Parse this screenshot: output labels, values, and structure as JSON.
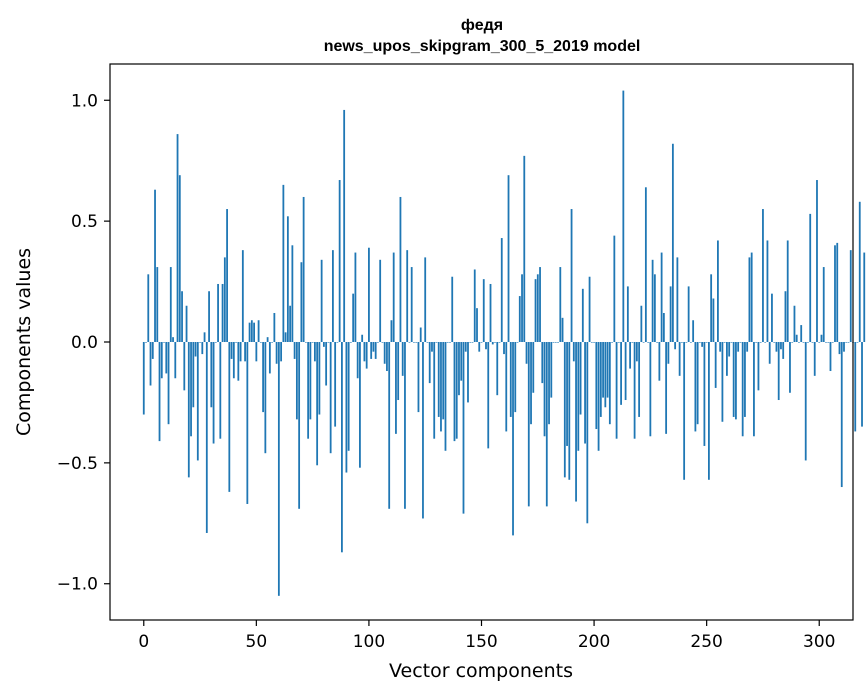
{
  "chart_data": {
    "type": "bar",
    "title": "федя",
    "subtitle": "news_upos_skipgram_300_5_2019 model",
    "xlabel": "Vector components",
    "ylabel": "Components values",
    "xlim": [
      -15,
      315
    ],
    "ylim": [
      -1.15,
      1.15
    ],
    "xticks": [
      0,
      50,
      100,
      150,
      200,
      250,
      300
    ],
    "yticks": [
      -1.0,
      -0.5,
      0.0,
      0.5,
      1.0
    ],
    "ytick_labels": [
      "−1.0",
      "−0.5",
      "0.0",
      "0.5",
      "1.0"
    ],
    "grid": false,
    "bar_color": "#1f77b4",
    "values": [
      -0.3,
      0.0,
      0.28,
      -0.18,
      -0.07,
      0.63,
      0.31,
      -0.41,
      -0.15,
      0.0,
      -0.13,
      -0.34,
      0.31,
      0.02,
      -0.15,
      0.86,
      0.69,
      0.21,
      -0.2,
      0.15,
      -0.56,
      -0.39,
      -0.27,
      -0.06,
      -0.49,
      0.0,
      -0.05,
      0.04,
      -0.79,
      0.21,
      -0.27,
      -0.42,
      0.0,
      0.24,
      -0.4,
      0.24,
      0.35,
      0.55,
      -0.62,
      -0.07,
      -0.15,
      0.0,
      -0.16,
      -0.08,
      0.38,
      -0.08,
      -0.67,
      0.08,
      0.09,
      0.08,
      -0.08,
      0.09,
      0.0,
      -0.29,
      -0.46,
      0.02,
      -0.13,
      0.0,
      0.12,
      -0.09,
      -1.05,
      -0.08,
      0.65,
      0.04,
      0.52,
      0.15,
      0.4,
      -0.07,
      -0.32,
      -0.69,
      0.33,
      0.6,
      0.0,
      -0.4,
      -0.32,
      0.0,
      -0.08,
      -0.51,
      -0.3,
      0.34,
      -0.02,
      -0.18,
      0.0,
      -0.46,
      0.38,
      -0.35,
      0.0,
      0.67,
      -0.87,
      0.96,
      -0.54,
      -0.45,
      0.0,
      0.2,
      0.37,
      -0.15,
      -0.52,
      0.03,
      -0.08,
      -0.11,
      0.39,
      -0.07,
      -0.04,
      -0.07,
      0.0,
      0.34,
      0.0,
      -0.09,
      -0.12,
      -0.69,
      0.09,
      0.37,
      -0.38,
      -0.24,
      0.6,
      -0.14,
      -0.69,
      0.38,
      0.0,
      0.31,
      0.0,
      0.0,
      -0.29,
      0.06,
      -0.73,
      0.35,
      0.0,
      -0.17,
      -0.04,
      -0.4,
      0.0,
      -0.31,
      -0.37,
      -0.32,
      -0.45,
      0.0,
      0.0,
      0.27,
      -0.41,
      -0.4,
      -0.22,
      -0.16,
      -0.71,
      -0.04,
      -0.25,
      0.0,
      0.0,
      0.3,
      0.14,
      -0.04,
      0.0,
      0.26,
      -0.03,
      -0.44,
      0.24,
      -0.01,
      0.0,
      -0.22,
      0.0,
      0.43,
      -0.05,
      -0.37,
      0.69,
      -0.31,
      -0.8,
      -0.29,
      0.0,
      0.19,
      0.28,
      0.77,
      -0.09,
      -0.68,
      -0.34,
      -0.21,
      0.26,
      0.28,
      0.31,
      -0.17,
      -0.39,
      -0.68,
      -0.34,
      -0.23,
      0.0,
      0.0,
      0.0,
      0.31,
      0.1,
      -0.56,
      -0.43,
      -0.57,
      0.55,
      -0.08,
      -0.66,
      -0.45,
      -0.3,
      0.22,
      -0.42,
      -0.75,
      0.27,
      0.0,
      0.0,
      -0.36,
      -0.45,
      -0.31,
      -0.23,
      -0.27,
      -0.23,
      -0.34,
      0.0,
      0.44,
      -0.4,
      0.0,
      -0.26,
      1.04,
      -0.24,
      0.23,
      -0.11,
      0.0,
      -0.4,
      -0.08,
      -0.31,
      0.15,
      0.0,
      0.64,
      0.0,
      -0.39,
      0.34,
      0.28,
      0.0,
      -0.16,
      0.37,
      0.12,
      -0.38,
      -0.09,
      0.23,
      0.82,
      -0.03,
      0.35,
      -0.14,
      0.0,
      -0.57,
      0.0,
      0.23,
      0.0,
      0.09,
      -0.37,
      -0.34,
      0.0,
      -0.02,
      -0.43,
      0.0,
      -0.57,
      0.28,
      0.18,
      -0.19,
      0.42,
      -0.04,
      -0.33,
      0.0,
      -0.14,
      -0.06,
      0.0,
      -0.31,
      -0.32,
      -0.04,
      0.0,
      -0.39,
      -0.31,
      -0.04,
      0.35,
      0.37,
      -0.39,
      0.0,
      -0.2,
      0.0,
      0.55,
      0.0,
      0.42,
      -0.09,
      0.2,
      0.0,
      -0.04,
      -0.24,
      -0.03,
      -0.07,
      0.21,
      0.42,
      -0.21,
      0.0,
      0.15,
      0.03,
      0.0,
      0.07,
      0.0,
      -0.49,
      0.0,
      0.53,
      0.0,
      -0.14,
      0.67,
      0.0,
      0.03,
      0.31,
      0.0,
      0.0,
      -0.12,
      0.0,
      0.4,
      0.41,
      -0.05,
      -0.6,
      -0.04,
      0.0,
      0.0,
      0.38,
      0.0,
      -0.37,
      0.0,
      0.58,
      -0.35,
      0.37
    ]
  }
}
